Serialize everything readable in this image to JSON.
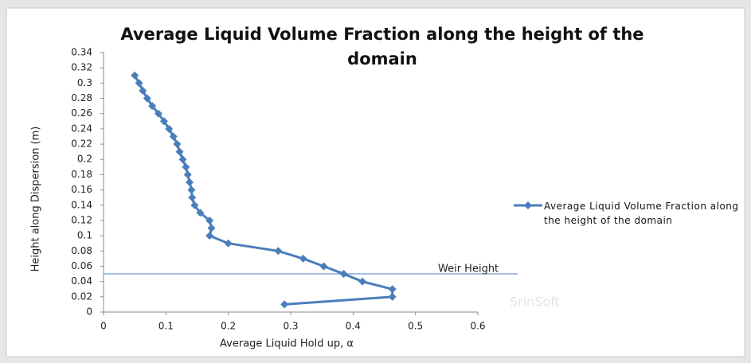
{
  "chart_data": {
    "type": "line",
    "title": "Average Liquid Volume Fraction along the height of the domain",
    "xlabel": "Average Liquid Hold up, α",
    "ylabel": "Height along Dispersion (m)",
    "xlim": [
      0,
      0.6
    ],
    "xticks": [
      0,
      0.1,
      0.2,
      0.3,
      0.4,
      0.5,
      0.6
    ],
    "ylim": [
      0,
      0.34
    ],
    "yticks": [
      0,
      0.02,
      0.04,
      0.06,
      0.08,
      0.1,
      0.12,
      0.14,
      0.16,
      0.18,
      0.2,
      0.22,
      0.24,
      0.26,
      0.28,
      0.3,
      0.32,
      0.34
    ],
    "grid": false,
    "legend": "right",
    "series": [
      {
        "name": "Average Liquid Volume Fraction along the height of the domain",
        "color": "#4a7ebb",
        "x": [
          0.29,
          0.463,
          0.463,
          0.415,
          0.385,
          0.353,
          0.32,
          0.28,
          0.2,
          0.17,
          0.173,
          0.17,
          0.155,
          0.146,
          0.142,
          0.141,
          0.138,
          0.135,
          0.132,
          0.127,
          0.122,
          0.118,
          0.112,
          0.105,
          0.097,
          0.088,
          0.078,
          0.07,
          0.063,
          0.057,
          0.05
        ],
        "values": [
          0.01,
          0.02,
          0.03,
          0.04,
          0.05,
          0.06,
          0.07,
          0.08,
          0.09,
          0.1,
          0.11,
          0.12,
          0.13,
          0.14,
          0.15,
          0.16,
          0.17,
          0.18,
          0.19,
          0.2,
          0.21,
          0.22,
          0.23,
          0.24,
          0.25,
          0.26,
          0.27,
          0.28,
          0.29,
          0.3,
          0.31
        ]
      }
    ],
    "reference_line": {
      "label": "Weir Height",
      "value": 0.05,
      "color": "#4a7ebb"
    },
    "watermark": "SrinSoft"
  }
}
